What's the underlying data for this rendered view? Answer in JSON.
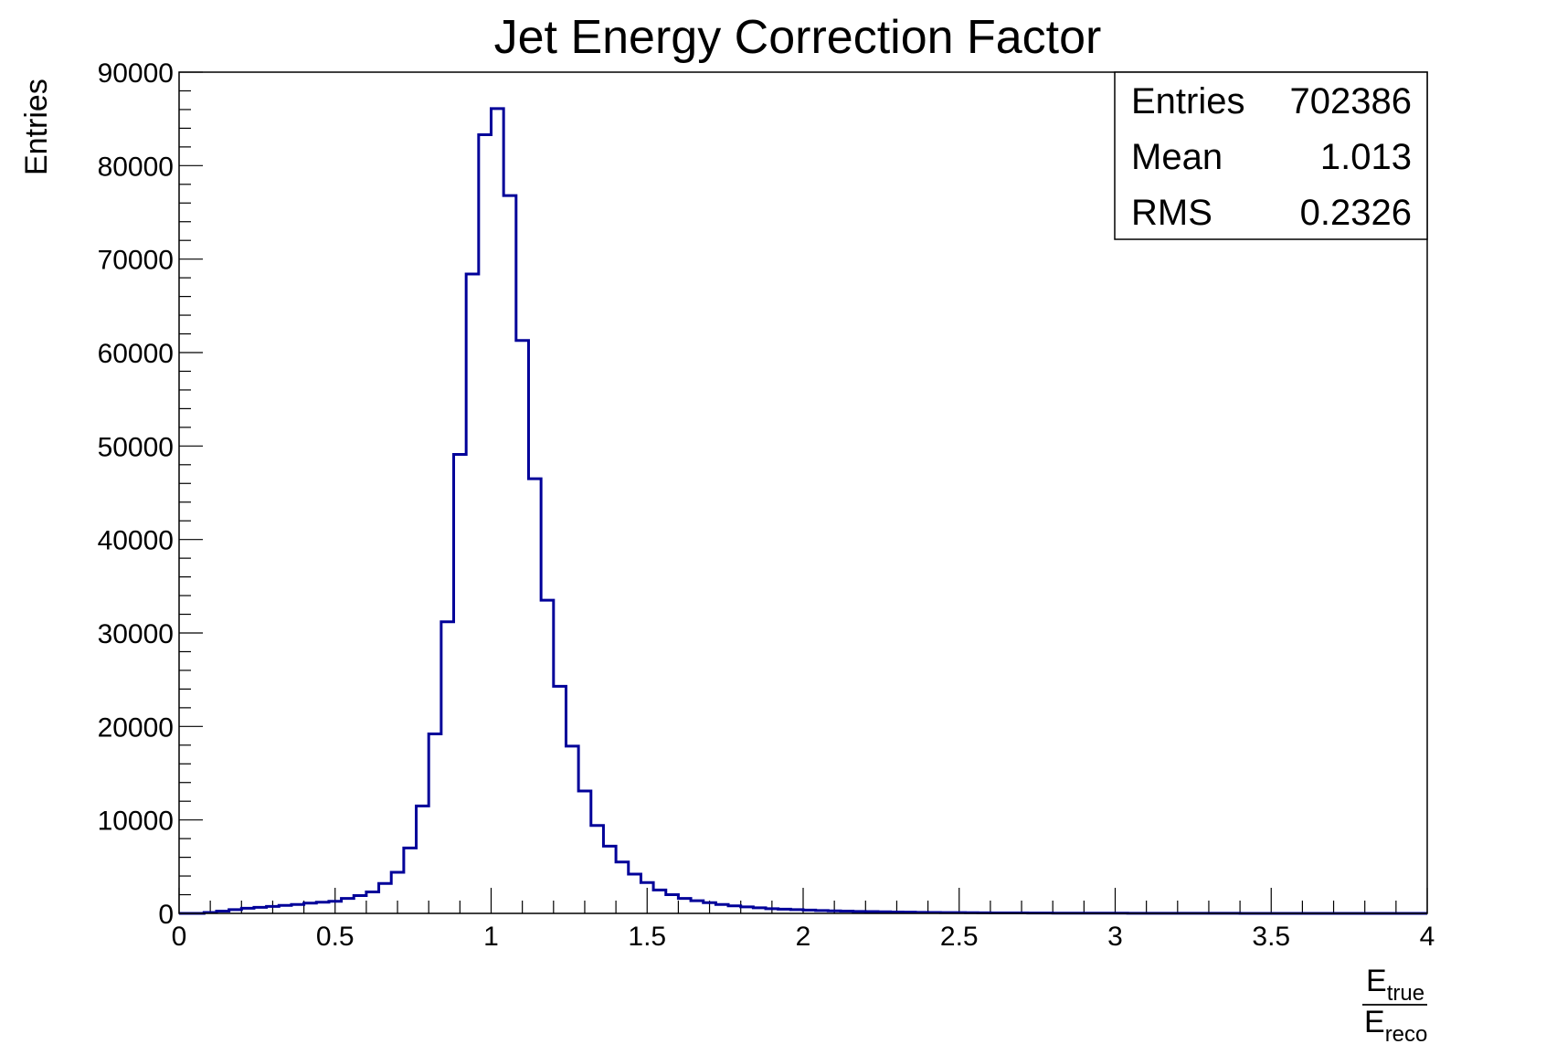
{
  "chart_data": {
    "type": "histogram",
    "title": "Jet Energy Correction Factor",
    "ylabel": "Entries",
    "xlabel": {
      "numerator": "E",
      "numerator_sub": "true",
      "denominator": "E",
      "denominator_sub": "reco"
    },
    "xlim": [
      0,
      4
    ],
    "ylim": [
      0,
      90000
    ],
    "bin_width": 0.04,
    "xticks": [
      "0",
      "0.5",
      "1",
      "1.5",
      "2",
      "2.5",
      "3",
      "3.5",
      "4"
    ],
    "yticks": [
      "0",
      "10000",
      "20000",
      "30000",
      "40000",
      "50000",
      "60000",
      "70000",
      "80000",
      "90000"
    ],
    "line_color": "#000099",
    "stats": [
      {
        "label": "Entries",
        "value": "702386"
      },
      {
        "label": "Mean",
        "value": "1.013"
      },
      {
        "label": "RMS",
        "value": "0.2326"
      }
    ],
    "values": [
      0,
      0,
      100,
      250,
      400,
      550,
      650,
      750,
      850,
      950,
      1100,
      1200,
      1300,
      1600,
      1900,
      2300,
      3200,
      4400,
      7000,
      11500,
      19200,
      31200,
      49100,
      68400,
      83300,
      86100,
      76800,
      61300,
      46500,
      33500,
      24300,
      17900,
      13100,
      9400,
      7200,
      5500,
      4200,
      3300,
      2500,
      2000,
      1600,
      1350,
      1150,
      950,
      800,
      700,
      600,
      500,
      450,
      400,
      350,
      300,
      270,
      240,
      210,
      190,
      170,
      150,
      130,
      110,
      100,
      90,
      80,
      70,
      60,
      55,
      50,
      45,
      40,
      35,
      30,
      28,
      26,
      24,
      22,
      20,
      18,
      16,
      14,
      12,
      11,
      10,
      9,
      8,
      7,
      6,
      5,
      5,
      4,
      4,
      3,
      3,
      3,
      2,
      2,
      2,
      1,
      1,
      1,
      1
    ]
  }
}
